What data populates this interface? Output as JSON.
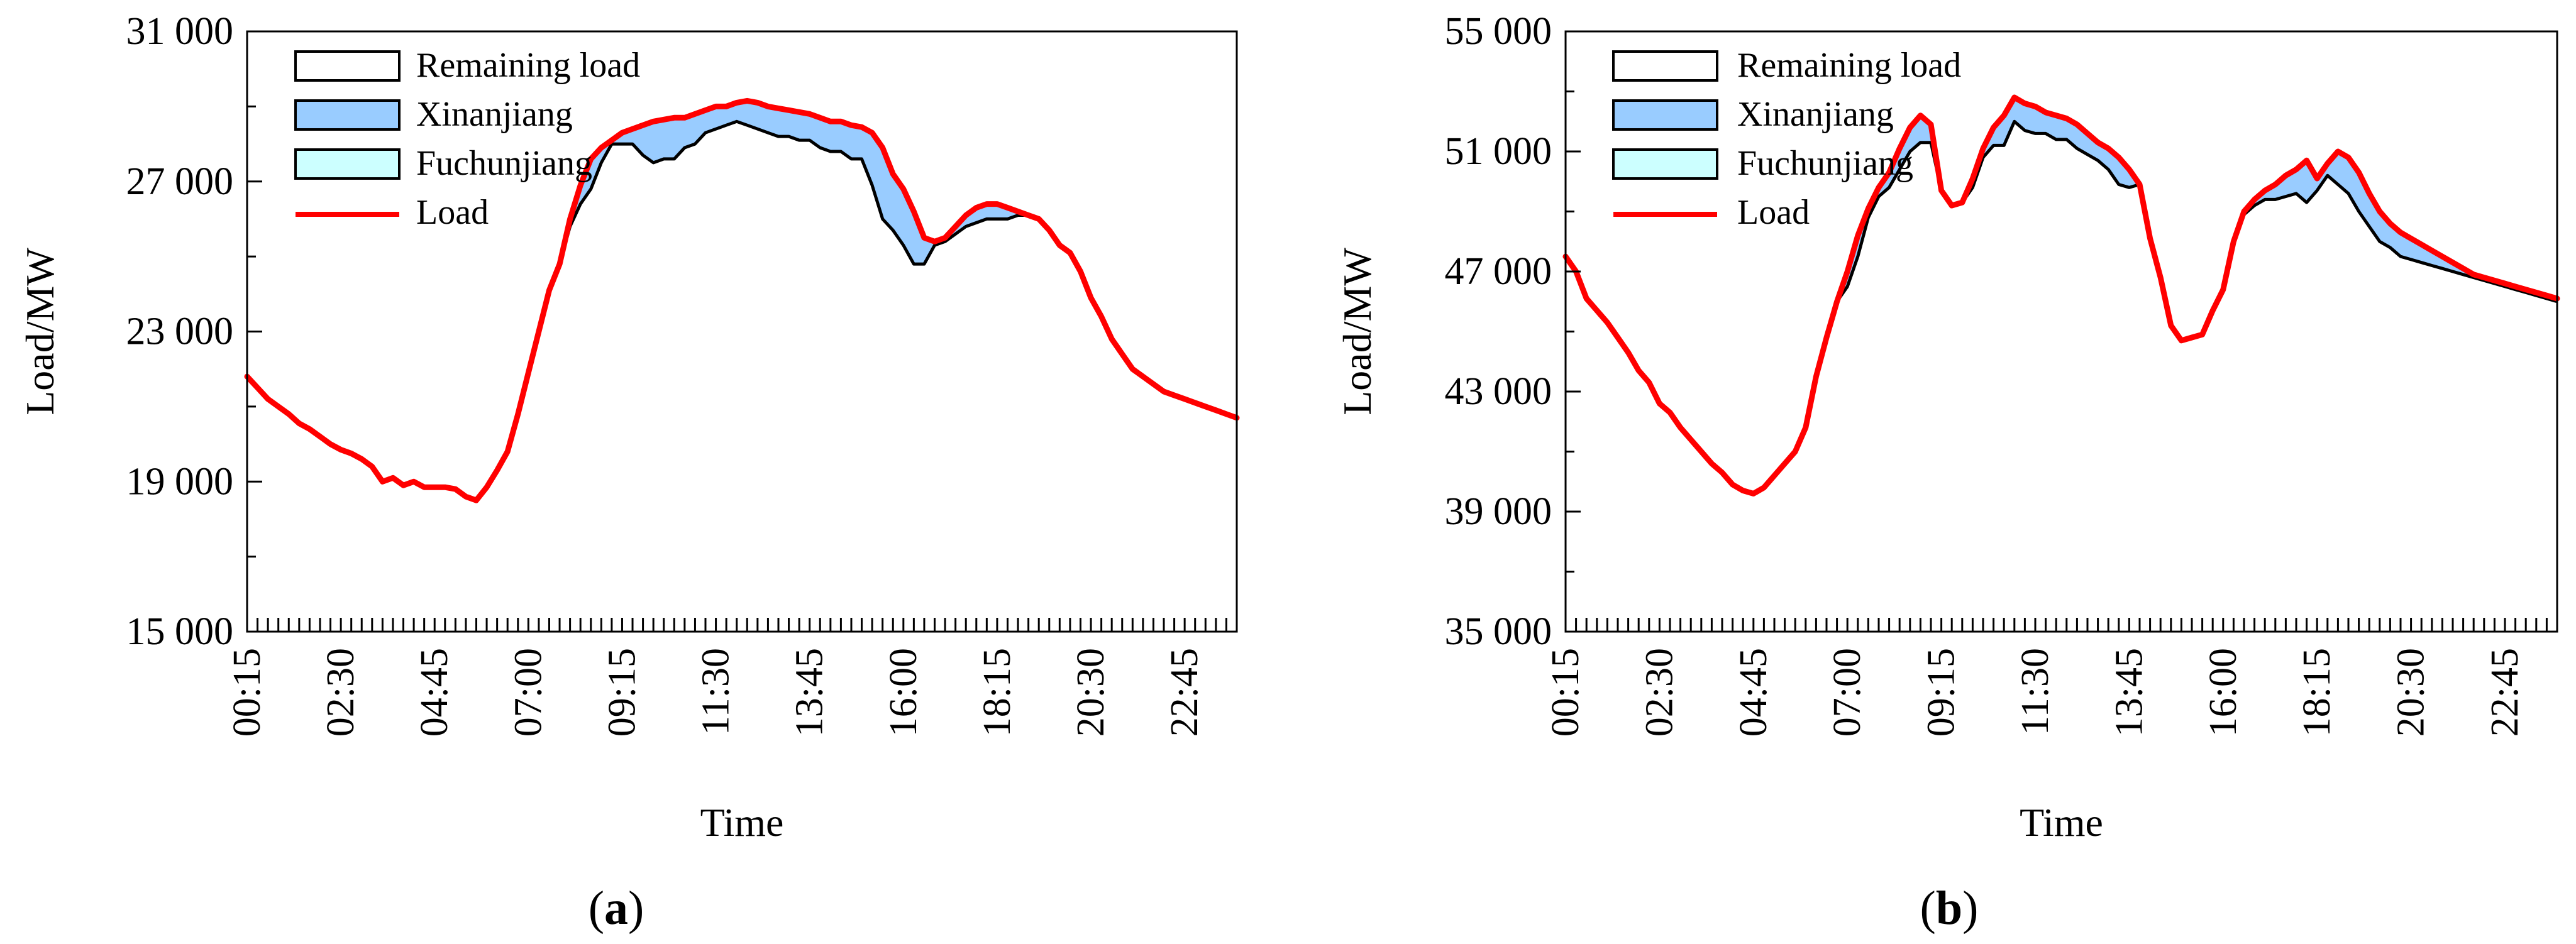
{
  "chart_data": [
    {
      "type": "area",
      "panel_label": "a",
      "xlabel": "Time",
      "ylabel": "Load/MW",
      "ylim": [
        15000,
        31000
      ],
      "y_ticks": [
        "15 000",
        "19 000",
        "23 000",
        "27 000",
        "31 000"
      ],
      "x_ticks": [
        "00:15",
        "02:30",
        "04:45",
        "07:00",
        "09:15",
        "11:30",
        "13:45",
        "16:00",
        "18:15",
        "20:30",
        "22:45"
      ],
      "legend": [
        "Remaining load",
        "Xinanjiang",
        "Fuchunjiang",
        "Load"
      ],
      "legend_position": "top-left",
      "grid": false,
      "colors": {
        "remaining_load": "#000000",
        "xinanjiang": "#99ccff",
        "fuchunjiang": "#ccffff",
        "load": "#ff0000"
      },
      "x": [
        "00:15",
        "00:30",
        "00:45",
        "01:00",
        "01:15",
        "01:30",
        "01:45",
        "02:00",
        "02:15",
        "02:30",
        "02:45",
        "03:00",
        "03:15",
        "03:30",
        "03:45",
        "04:00",
        "04:15",
        "04:30",
        "04:45",
        "05:00",
        "05:15",
        "05:30",
        "05:45",
        "06:00",
        "06:15",
        "06:30",
        "06:45",
        "07:00",
        "07:15",
        "07:30",
        "07:45",
        "08:00",
        "08:15",
        "08:30",
        "08:45",
        "09:00",
        "09:15",
        "09:30",
        "09:45",
        "10:00",
        "10:15",
        "10:30",
        "10:45",
        "11:00",
        "11:15",
        "11:30",
        "11:45",
        "12:00",
        "12:15",
        "12:30",
        "12:45",
        "13:00",
        "13:15",
        "13:30",
        "13:45",
        "14:00",
        "14:15",
        "14:30",
        "14:45",
        "15:00",
        "15:15",
        "15:30",
        "15:45",
        "16:00",
        "16:15",
        "16:30",
        "16:45",
        "17:00",
        "17:15",
        "17:30",
        "17:45",
        "18:00",
        "18:15",
        "18:30",
        "18:45",
        "19:00",
        "19:15",
        "19:30",
        "19:45",
        "20:00",
        "20:15",
        "20:30",
        "20:45",
        "21:00",
        "21:15",
        "21:30",
        "21:45",
        "22:00",
        "22:15",
        "22:30",
        "22:45",
        "23:00",
        "23:15",
        "23:30",
        "23:45",
        "24:00"
      ],
      "series": [
        {
          "name": "Load",
          "values": [
            21800,
            21500,
            21200,
            21000,
            20800,
            20550,
            20400,
            20200,
            20000,
            19850,
            19750,
            19600,
            19400,
            19000,
            19100,
            18900,
            19000,
            18850,
            18850,
            18850,
            18800,
            18600,
            18500,
            18850,
            19300,
            19800,
            20800,
            21900,
            23000,
            24100,
            24800,
            26000,
            26900,
            27600,
            27900,
            28100,
            28300,
            28400,
            28500,
            28600,
            28650,
            28700,
            28700,
            28800,
            28900,
            29000,
            29000,
            29100,
            29150,
            29100,
            29000,
            28950,
            28900,
            28850,
            28800,
            28700,
            28600,
            28600,
            28500,
            28450,
            28300,
            27900,
            27200,
            26800,
            26200,
            25500,
            25400,
            25500,
            25800,
            26100,
            26300,
            26400,
            26400,
            26300,
            26200,
            26100,
            26000,
            25700,
            25300,
            25100,
            24600,
            23900,
            23400,
            22800,
            22400,
            22000,
            21800,
            21600,
            21400,
            21300,
            21200,
            21100,
            21000,
            20900,
            20800,
            20700
          ]
        },
        {
          "name": "Remaining load",
          "values": [
            21800,
            21500,
            21200,
            21000,
            20800,
            20550,
            20400,
            20200,
            20000,
            19850,
            19750,
            19600,
            19400,
            19000,
            19100,
            18900,
            19000,
            18850,
            18850,
            18850,
            18800,
            18600,
            18500,
            18850,
            19300,
            19800,
            20800,
            21900,
            23000,
            24100,
            24800,
            25800,
            26400,
            26800,
            27500,
            28000,
            28000,
            28000,
            27700,
            27500,
            27600,
            27600,
            27900,
            28000,
            28300,
            28400,
            28500,
            28600,
            28500,
            28400,
            28300,
            28200,
            28200,
            28100,
            28100,
            27900,
            27800,
            27800,
            27600,
            27600,
            26900,
            26000,
            25700,
            25300,
            24800,
            24800,
            25300,
            25400,
            25600,
            25800,
            25900,
            26000,
            26000,
            26000,
            26100,
            26100,
            26000,
            25700,
            25300,
            25100,
            24600,
            23900,
            23400,
            22800,
            22400,
            22000,
            21800,
            21600,
            21400,
            21300,
            21200,
            21100,
            21000,
            20900,
            20800,
            20700
          ]
        }
      ]
    },
    {
      "type": "area",
      "panel_label": "b",
      "xlabel": "Time",
      "ylabel": "Load/MW",
      "ylim": [
        35000,
        55000
      ],
      "y_ticks": [
        "35 000",
        "39 000",
        "43 000",
        "47 000",
        "51 000",
        "55 000"
      ],
      "x_ticks": [
        "00:15",
        "02:30",
        "04:45",
        "07:00",
        "09:15",
        "11:30",
        "13:45",
        "16:00",
        "18:15",
        "20:30",
        "22:45"
      ],
      "legend": [
        "Remaining load",
        "Xinanjiang",
        "Fuchunjiang",
        "Load"
      ],
      "legend_position": "top-left",
      "grid": false,
      "colors": {
        "remaining_load": "#000000",
        "xinanjiang": "#99ccff",
        "fuchunjiang": "#ccffff",
        "load": "#ff0000"
      },
      "x": [
        "00:15",
        "00:30",
        "00:45",
        "01:00",
        "01:15",
        "01:30",
        "01:45",
        "02:00",
        "02:15",
        "02:30",
        "02:45",
        "03:00",
        "03:15",
        "03:30",
        "03:45",
        "04:00",
        "04:15",
        "04:30",
        "04:45",
        "05:00",
        "05:15",
        "05:30",
        "05:45",
        "06:00",
        "06:15",
        "06:30",
        "06:45",
        "07:00",
        "07:15",
        "07:30",
        "07:45",
        "08:00",
        "08:15",
        "08:30",
        "08:45",
        "09:00",
        "09:15",
        "09:30",
        "09:45",
        "10:00",
        "10:15",
        "10:30",
        "10:45",
        "11:00",
        "11:15",
        "11:30",
        "11:45",
        "12:00",
        "12:15",
        "12:30",
        "12:45",
        "13:00",
        "13:15",
        "13:30",
        "13:45",
        "14:00",
        "14:15",
        "14:30",
        "14:45",
        "15:00",
        "15:15",
        "15:30",
        "15:45",
        "16:00",
        "16:15",
        "16:30",
        "16:45",
        "17:00",
        "17:15",
        "17:30",
        "17:45",
        "18:00",
        "18:15",
        "18:30",
        "18:45",
        "19:00",
        "19:15",
        "19:30",
        "19:45",
        "20:00",
        "20:15",
        "20:30",
        "20:45",
        "21:00",
        "21:15",
        "21:30",
        "21:45",
        "22:00",
        "22:15",
        "22:30",
        "22:45",
        "23:00",
        "23:15",
        "23:30",
        "23:45",
        "24:00"
      ],
      "series": [
        {
          "name": "Load",
          "values": [
            47500,
            47000,
            46100,
            45700,
            45300,
            44800,
            44300,
            43700,
            43300,
            42600,
            42300,
            41800,
            41400,
            41000,
            40600,
            40300,
            39900,
            39700,
            39600,
            39800,
            40200,
            40600,
            41000,
            41800,
            43500,
            44800,
            46000,
            47000,
            48200,
            49100,
            49800,
            50300,
            51100,
            51800,
            52200,
            51900,
            49700,
            49200,
            49300,
            50100,
            51100,
            51800,
            52200,
            52800,
            52600,
            52500,
            52300,
            52200,
            52100,
            51900,
            51600,
            51300,
            51100,
            50800,
            50400,
            49900,
            48100,
            46800,
            45200,
            44700,
            44800,
            44900,
            45700,
            46400,
            48000,
            49000,
            49400,
            49700,
            49900,
            50200,
            50400,
            50700,
            50100,
            50600,
            51000,
            50800,
            50300,
            49600,
            49000,
            48600,
            48300,
            48100,
            47900,
            47700,
            47500,
            47300,
            47100,
            46900,
            46800,
            46700,
            46600,
            46500,
            46400,
            46300,
            46200,
            46100
          ]
        },
        {
          "name": "Remaining load",
          "values": [
            47500,
            47000,
            46100,
            45700,
            45300,
            44800,
            44300,
            43700,
            43300,
            42600,
            42300,
            41800,
            41400,
            41000,
            40600,
            40300,
            39900,
            39700,
            39600,
            39800,
            40200,
            40600,
            41000,
            41800,
            43500,
            44800,
            46000,
            46500,
            47500,
            48800,
            49500,
            49800,
            50400,
            51000,
            51300,
            51300,
            49700,
            49200,
            49300,
            49800,
            50800,
            51200,
            51200,
            52000,
            51700,
            51600,
            51600,
            51400,
            51400,
            51100,
            50900,
            50700,
            50400,
            49900,
            49800,
            49900,
            48100,
            46800,
            45200,
            44700,
            44800,
            44900,
            45700,
            46400,
            48000,
            48900,
            49200,
            49400,
            49400,
            49500,
            49600,
            49300,
            49700,
            50200,
            49900,
            49600,
            49000,
            48500,
            48000,
            47800,
            47500,
            47400,
            47300,
            47200,
            47100,
            47000,
            46900,
            46800,
            46700,
            46600,
            46500,
            46400,
            46300,
            46200,
            46100,
            46000
          ]
        }
      ]
    }
  ]
}
